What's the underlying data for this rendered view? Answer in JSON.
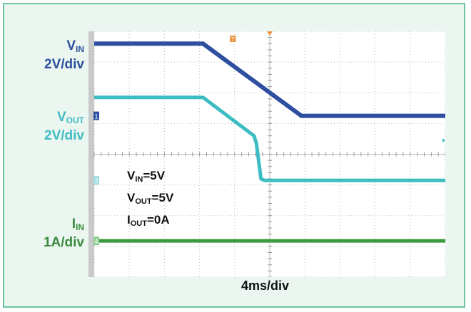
{
  "labels": {
    "vin_main": "V",
    "vin_sub": "IN",
    "vin_scale": "2V/div",
    "vout_main": "V",
    "vout_sub": "OUT",
    "vout_scale": "2V/div",
    "iin_main": "I",
    "iin_sub": "IN",
    "iin_scale": "1A/div",
    "time_scale": "4ms/div",
    "cond_vin_main": "V",
    "cond_vin_sub": "IN",
    "cond_vin_val": "=5V",
    "cond_vout_main": "V",
    "cond_vout_sub": "OUT",
    "cond_vout_val": "=5V",
    "cond_iout_main": "I",
    "cond_iout_sub": "OUT",
    "cond_iout_val": "=0A",
    "ch_marker_1": "1",
    "ch_marker_2": "2",
    "ch_marker_4": "4",
    "trigger_marker": "T"
  },
  "colors": {
    "vin": "#2e4f9f",
    "vout": "#3fbcc3",
    "iin": "#3a9a3e",
    "grid": "#bbbbbb",
    "screen": "#ffffff",
    "frame": "#6cc3a0",
    "trigger": "#e8913a"
  },
  "chart_data": {
    "type": "line",
    "x_unit": "div",
    "y_unit": "div",
    "xlim": [
      0,
      10
    ],
    "ylim": [
      0,
      8
    ],
    "grid": true,
    "series": [
      {
        "name": "VIN",
        "x": [
          0,
          3.1,
          5.9,
          10
        ],
        "y": [
          7.6,
          7.6,
          5.25,
          5.25
        ]
      },
      {
        "name": "VOUT",
        "x": [
          0,
          3.1,
          4.55,
          4.62,
          4.75,
          4.85,
          10
        ],
        "y": [
          5.85,
          5.85,
          4.6,
          4.35,
          3.2,
          3.15,
          3.15
        ]
      },
      {
        "name": "IIN",
        "x": [
          0,
          10
        ],
        "y": [
          1.18,
          1.18
        ]
      }
    ]
  }
}
